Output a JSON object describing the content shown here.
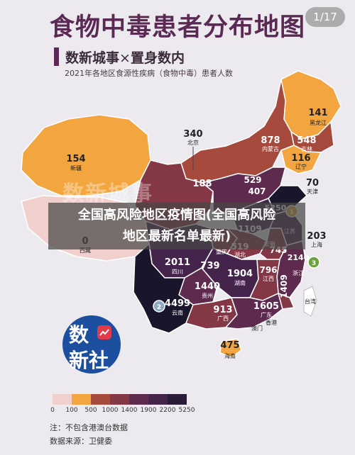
{
  "pager": "1/17",
  "title": "食物中毒患者分布地图",
  "subtitle": {
    "brand": "数新城事",
    "times": "×",
    "rest": "置身数内"
  },
  "caption": "2021年各地区食源性疾病（食物中毒）患者人数",
  "watermark": "数新城事",
  "overlay": {
    "line1": "全国高风险地区疫情图(全国高风险",
    "line2": "地区最新名单最新)"
  },
  "logo": {
    "line1": "数",
    "line2": "新社"
  },
  "colors": {
    "tier0": "#f1cfcc",
    "tier1": "#f3a640",
    "tier2": "#a54a3c",
    "tier3": "#843744",
    "tier4": "#5e2a4e",
    "tier5": "#45244c",
    "tier6": "#2a1c36",
    "tier7": "#19152a",
    "title": "#5a2a54",
    "logo": "#1d4fa0"
  },
  "legend": {
    "ticks": [
      "0",
      "100",
      "500",
      "1000",
      "1400",
      "1900",
      "2200",
      "5250"
    ]
  },
  "regions": [
    {
      "name": "黑龙江",
      "value": "141",
      "tier": 1
    },
    {
      "name": "吉林",
      "value": "548",
      "tier": 1
    },
    {
      "name": "辽宁",
      "value": "116",
      "tier": 1
    },
    {
      "name": "内蒙古",
      "value": "878",
      "tier": 2
    },
    {
      "name": "北京",
      "value": "340",
      "tier": -1
    },
    {
      "name": "天津",
      "value": "70",
      "tier": -1
    },
    {
      "name": "新疆",
      "value": "154",
      "tier": 1
    },
    {
      "name": "西藏",
      "value": "0",
      "tier": 0
    },
    {
      "name": "上海",
      "value": "203",
      "tier": -1
    },
    {
      "name": "湖北",
      "value": "519",
      "tier": 3
    },
    {
      "name": "安徽",
      "value": "745",
      "tier": 3
    },
    {
      "name": "江苏",
      "value": "2140",
      "tier": 5
    },
    {
      "name": "重庆",
      "value": "",
      "tier": 3
    },
    {
      "name": "四川",
      "value": "2011",
      "tier": 5
    },
    {
      "name": "湖南",
      "value": "1904",
      "tier": 5
    },
    {
      "name": "江西",
      "value": "796",
      "tier": 3
    },
    {
      "name": "浙江",
      "value": "1409",
      "tier": 4
    },
    {
      "name": "贵州",
      "value": "1440",
      "tier": 4
    },
    {
      "name": "云南",
      "value": "4499",
      "tier": 7
    },
    {
      "name": "广西",
      "value": "913",
      "tier": 3
    },
    {
      "name": "广东",
      "value": "1605",
      "tier": 4
    },
    {
      "name": "香港",
      "value": "",
      "tier": -1
    },
    {
      "name": "澳门",
      "value": "",
      "tier": -1
    },
    {
      "name": "台湾",
      "value": "",
      "tier": -1
    },
    {
      "name": "海南",
      "value": "475",
      "tier": 1
    }
  ],
  "extra_values": [
    "188",
    "529",
    "407",
    "1109",
    "5250",
    "739"
  ],
  "note": "注：不包含港澳台数据",
  "source": "数据来源：卫健委"
}
